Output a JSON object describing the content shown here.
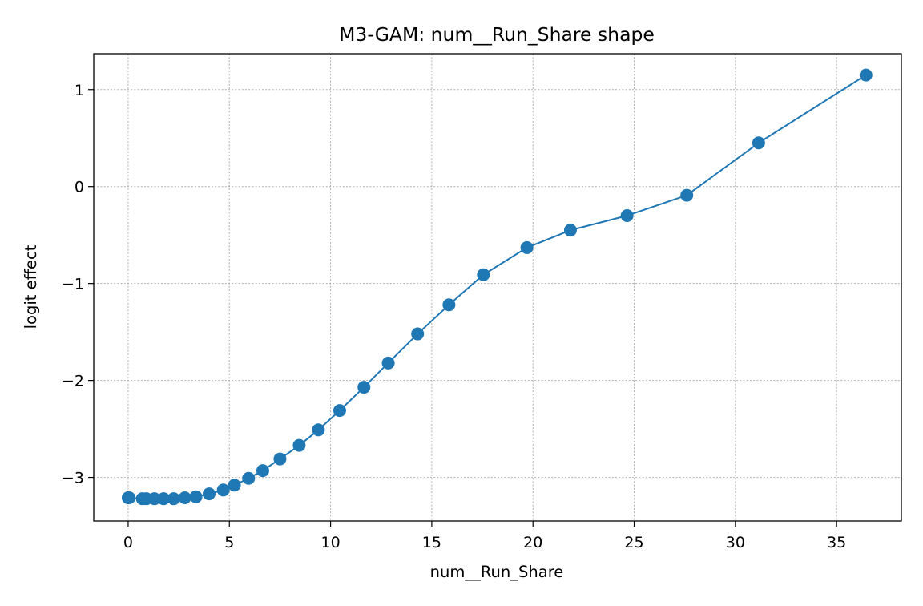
{
  "chart_data": {
    "type": "line",
    "title": "M3-GAM: num__Run_Share shape",
    "xlabel": "num__Run_Share",
    "ylabel": "logit effect",
    "xlim": [
      -1.7,
      38.2
    ],
    "ylim": [
      -3.45,
      1.37
    ],
    "xticks": [
      0,
      5,
      10,
      15,
      20,
      25,
      30,
      35
    ],
    "xtick_labels": [
      "0",
      "5",
      "10",
      "15",
      "20",
      "25",
      "30",
      "35"
    ],
    "yticks": [
      1,
      0,
      -1,
      -2,
      -3
    ],
    "ytick_labels": [
      "1",
      "0",
      "−1",
      "−2",
      "−3"
    ],
    "grid": true,
    "legend": "none",
    "series": [
      {
        "color": "#1f77b4",
        "marker": "circle",
        "x": [
          0.0,
          0.05,
          0.7,
          0.9,
          1.3,
          1.75,
          2.25,
          2.8,
          3.35,
          4.0,
          4.7,
          5.25,
          5.95,
          6.65,
          7.5,
          8.45,
          9.4,
          10.45,
          11.65,
          12.85,
          14.3,
          15.85,
          17.55,
          19.7,
          21.85,
          24.65,
          27.6,
          31.15,
          36.45
        ],
        "y": [
          -3.21,
          -3.21,
          -3.22,
          -3.22,
          -3.22,
          -3.22,
          -3.22,
          -3.21,
          -3.2,
          -3.17,
          -3.13,
          -3.08,
          -3.01,
          -2.93,
          -2.81,
          -2.67,
          -2.51,
          -2.31,
          -2.07,
          -1.82,
          -1.52,
          -1.22,
          -0.91,
          -0.63,
          -0.45,
          -0.3,
          -0.09,
          0.45,
          1.15
        ]
      }
    ]
  }
}
